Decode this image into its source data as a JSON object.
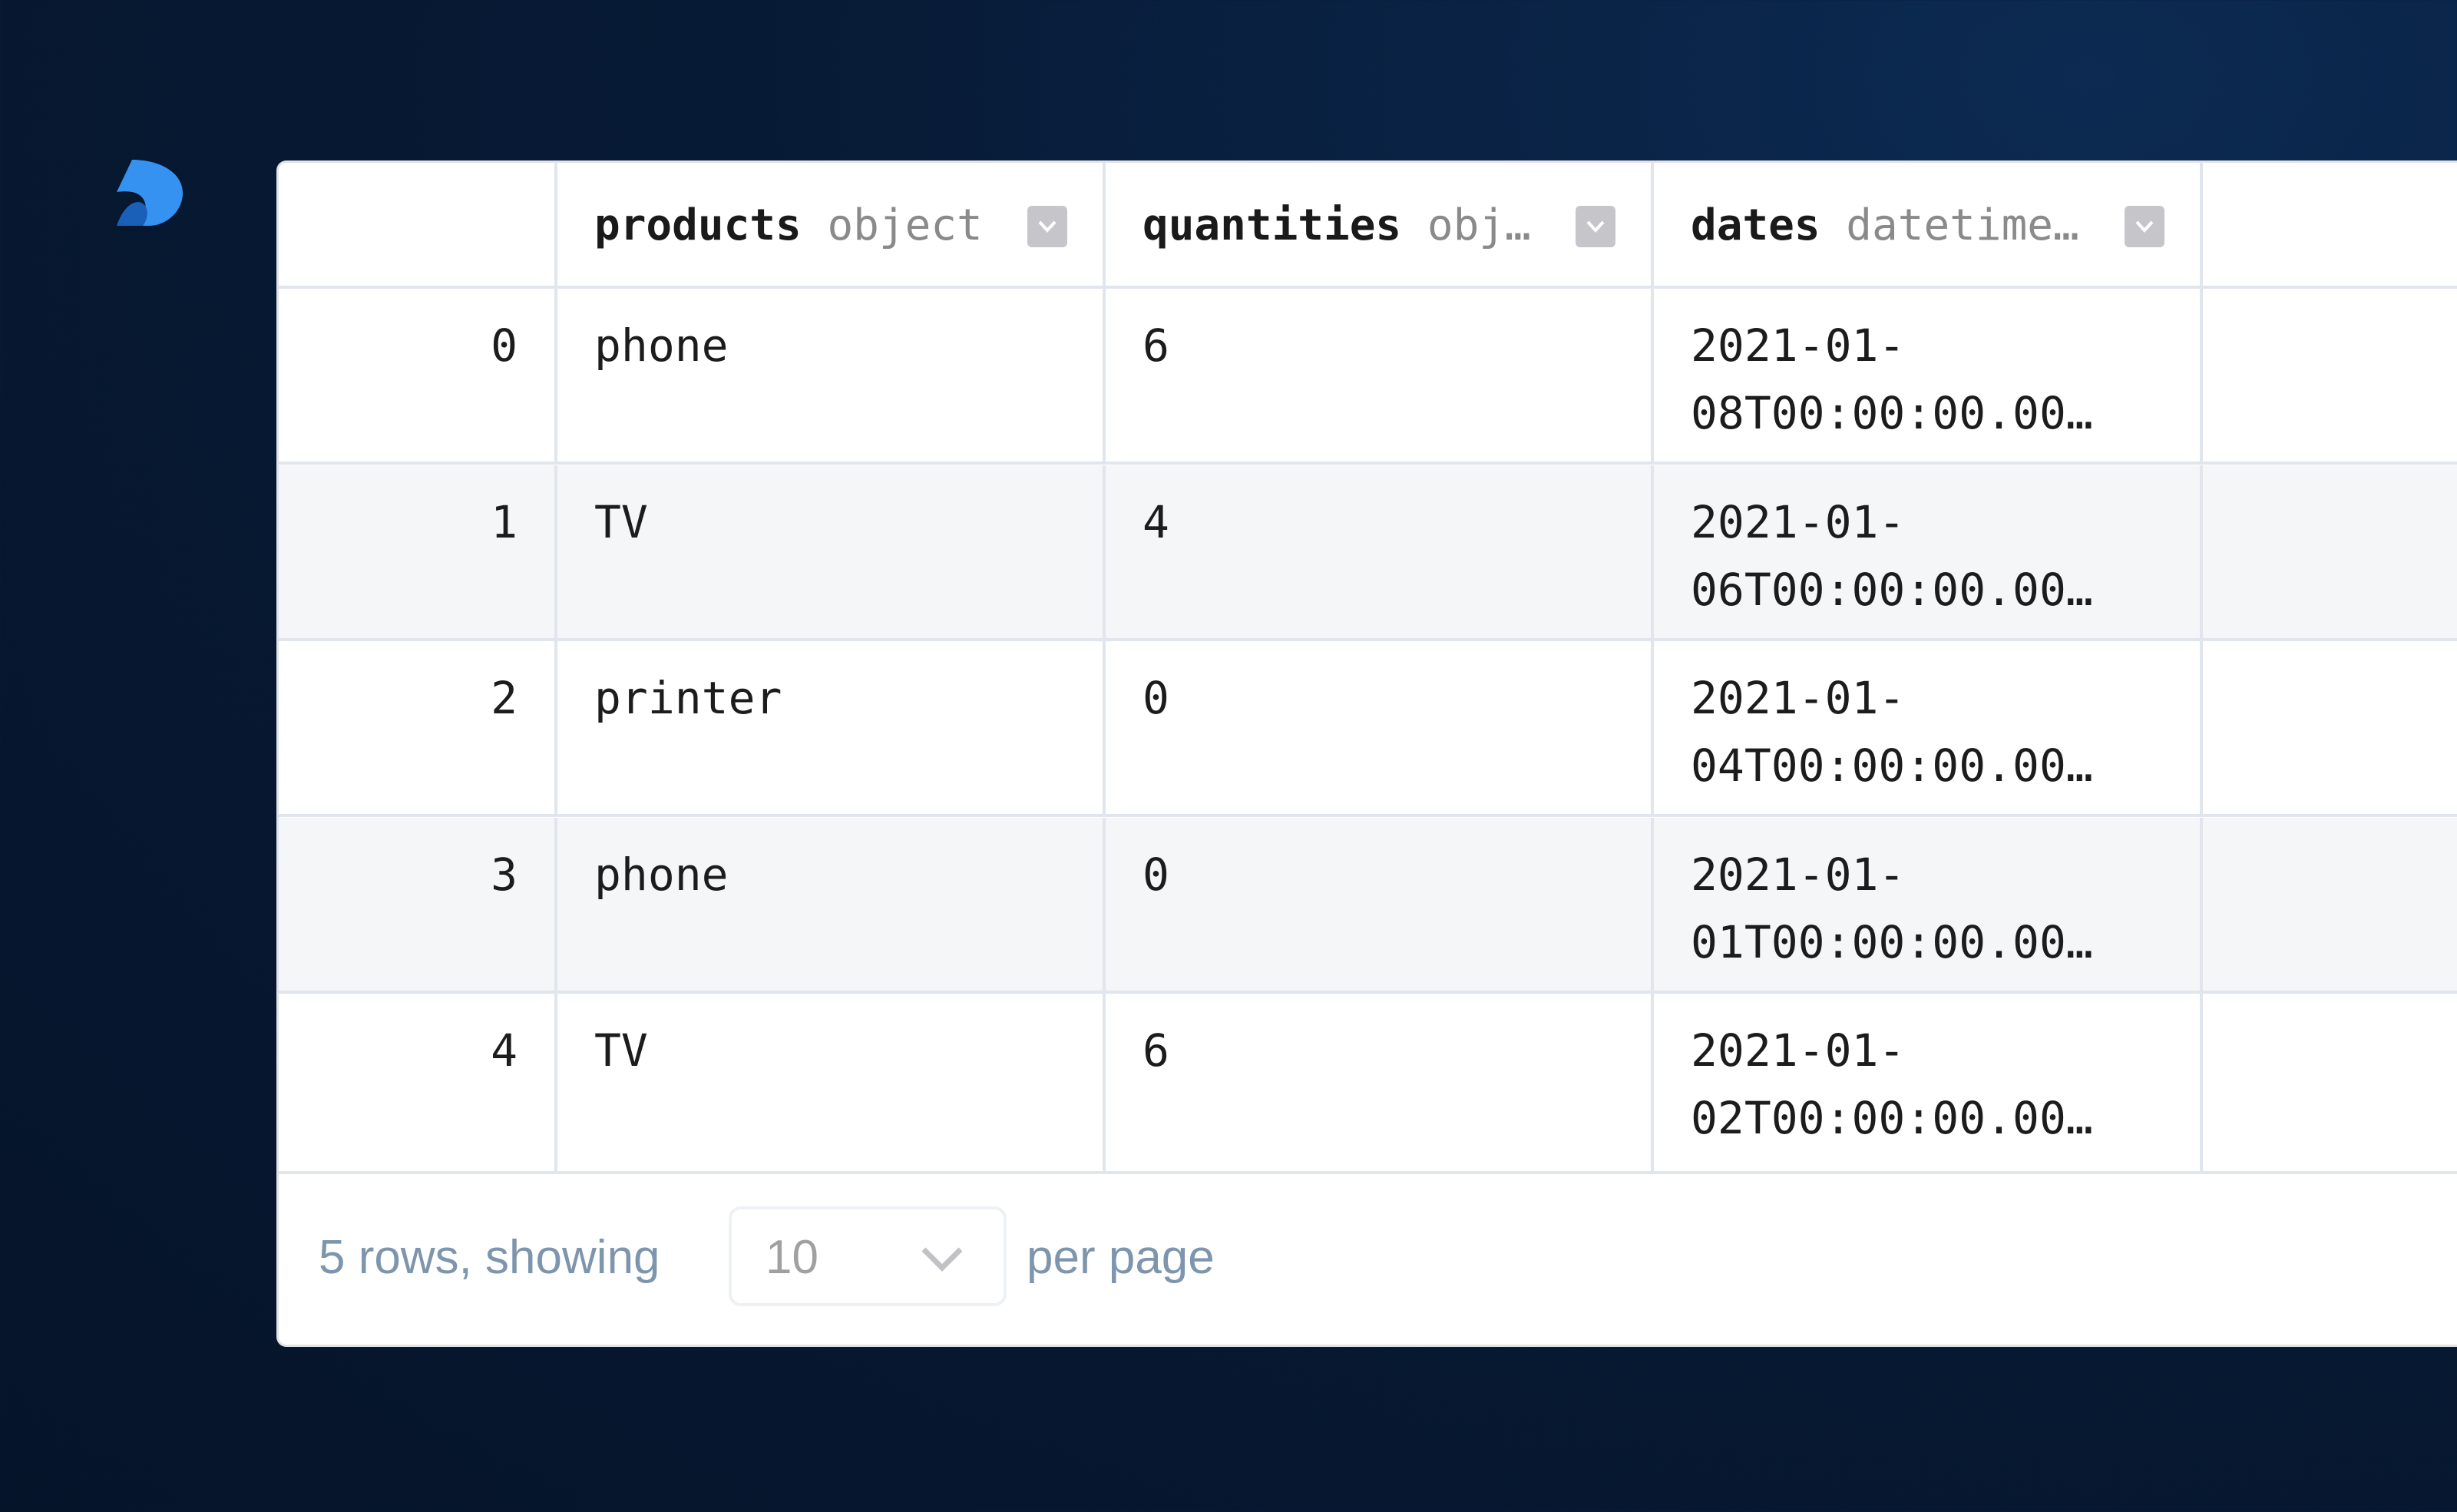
{
  "logo": {
    "name": "deepnote-logo",
    "color": "#3592f0"
  },
  "table": {
    "columns": [
      {
        "name": "products",
        "type": "object"
      },
      {
        "name": "quantities",
        "type": "obj…"
      },
      {
        "name": "dates",
        "type": "datetime…"
      }
    ],
    "rows": [
      {
        "index": "0",
        "products": "phone",
        "quantities": "6",
        "dates": "2021-01-\n08T00:00:00.00…"
      },
      {
        "index": "1",
        "products": "TV",
        "quantities": "4",
        "dates": "2021-01-\n06T00:00:00.00…"
      },
      {
        "index": "2",
        "products": "printer",
        "quantities": "0",
        "dates": "2021-01-\n04T00:00:00.00…"
      },
      {
        "index": "3",
        "products": "phone",
        "quantities": "0",
        "dates": "2021-01-\n01T00:00:00.00…"
      },
      {
        "index": "4",
        "products": "TV",
        "quantities": "6",
        "dates": "2021-01-\n02T00:00:00.00…"
      }
    ]
  },
  "footer": {
    "rows_text": "5 rows, showing",
    "page_size": "10",
    "per_page": "per page"
  }
}
